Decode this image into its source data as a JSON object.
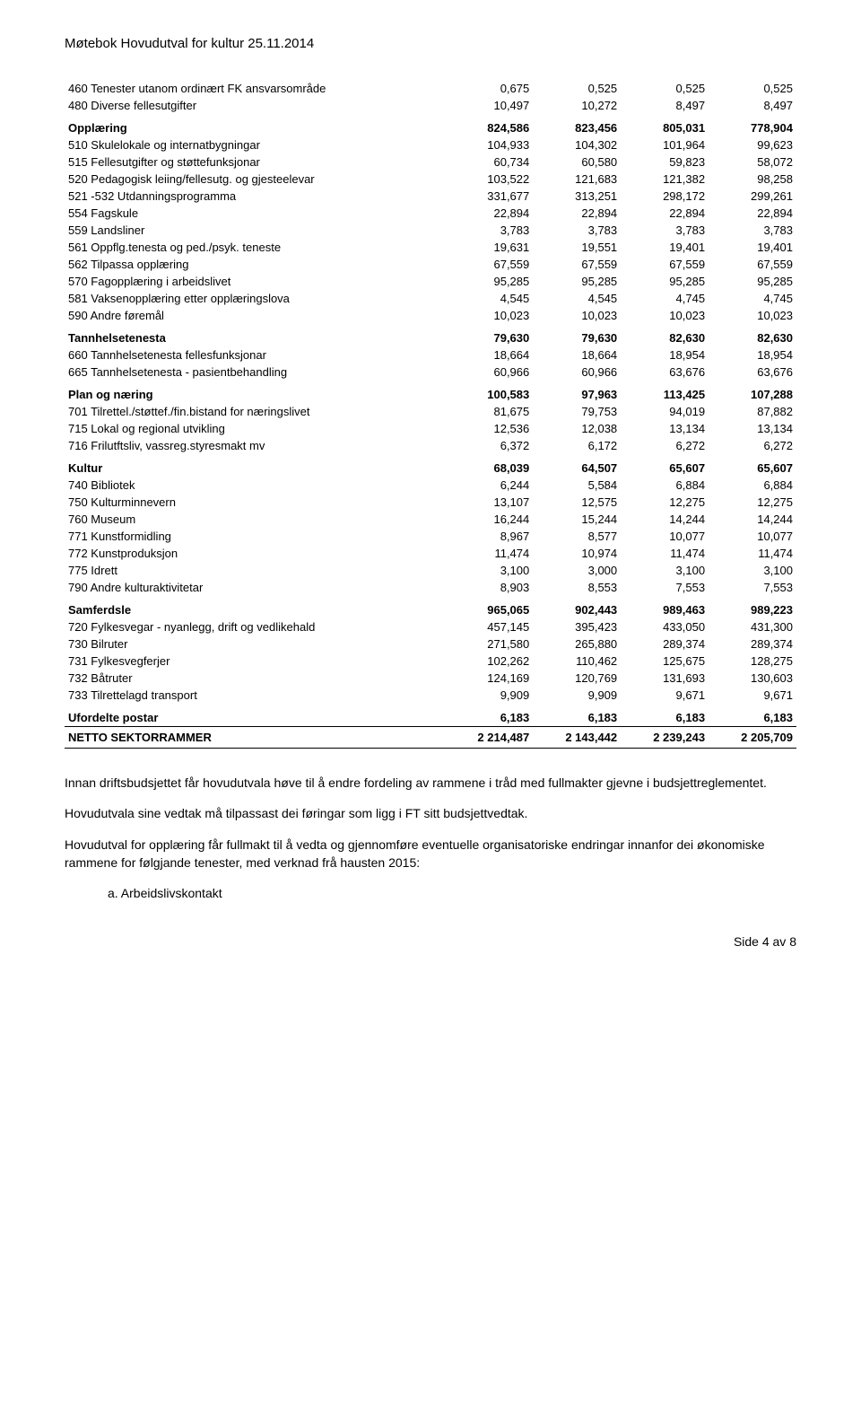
{
  "header": "Møtebok Hovudutval for kultur 25.11.2014",
  "rows": [
    {
      "type": "data",
      "label": "460 Tenester utanom ordinært FK ansvarsområde",
      "c": [
        "0,675",
        "0,525",
        "0,525",
        "0,525"
      ]
    },
    {
      "type": "data",
      "label": "480 Diverse fellesutgifter",
      "c": [
        "10,497",
        "10,272",
        "8,497",
        "8,497"
      ]
    },
    {
      "type": "section",
      "label": "Opplæring",
      "c": [
        "824,586",
        "823,456",
        "805,031",
        "778,904"
      ]
    },
    {
      "type": "data",
      "label": "510 Skulelokale og internatbygningar",
      "c": [
        "104,933",
        "104,302",
        "101,964",
        "99,623"
      ]
    },
    {
      "type": "data",
      "label": "515 Fellesutgifter og støttefunksjonar",
      "c": [
        "60,734",
        "60,580",
        "59,823",
        "58,072"
      ]
    },
    {
      "type": "data",
      "label": "520 Pedagogisk leiing/fellesutg. og gjesteelevar",
      "c": [
        "103,522",
        "121,683",
        "121,382",
        "98,258"
      ]
    },
    {
      "type": "data",
      "label": "521 -532 Utdanningsprogramma",
      "c": [
        "331,677",
        "313,251",
        "298,172",
        "299,261"
      ]
    },
    {
      "type": "data",
      "label": "554 Fagskule",
      "c": [
        "22,894",
        "22,894",
        "22,894",
        "22,894"
      ]
    },
    {
      "type": "data",
      "label": "559 Landsliner",
      "c": [
        "3,783",
        "3,783",
        "3,783",
        "3,783"
      ]
    },
    {
      "type": "data",
      "label": "561 Oppflg.tenesta og ped./psyk. teneste",
      "c": [
        "19,631",
        "19,551",
        "19,401",
        "19,401"
      ]
    },
    {
      "type": "data",
      "label": "562 Tilpassa opplæring",
      "c": [
        "67,559",
        "67,559",
        "67,559",
        "67,559"
      ]
    },
    {
      "type": "data",
      "label": "570 Fagopplæring i arbeidslivet",
      "c": [
        "95,285",
        "95,285",
        "95,285",
        "95,285"
      ]
    },
    {
      "type": "data",
      "label": "581 Vaksenopplæring etter opplæringslova",
      "c": [
        "4,545",
        "4,545",
        "4,745",
        "4,745"
      ]
    },
    {
      "type": "data",
      "label": "590 Andre føremål",
      "c": [
        "10,023",
        "10,023",
        "10,023",
        "10,023"
      ]
    },
    {
      "type": "section",
      "label": "Tannhelsetenesta",
      "c": [
        "79,630",
        "79,630",
        "82,630",
        "82,630"
      ]
    },
    {
      "type": "data",
      "label": "660 Tannhelsetenesta fellesfunksjonar",
      "c": [
        "18,664",
        "18,664",
        "18,954",
        "18,954"
      ]
    },
    {
      "type": "data",
      "label": "665 Tannhelsetenesta - pasientbehandling",
      "c": [
        "60,966",
        "60,966",
        "63,676",
        "63,676"
      ]
    },
    {
      "type": "section",
      "label": "Plan og næring",
      "c": [
        "100,583",
        "97,963",
        "113,425",
        "107,288"
      ]
    },
    {
      "type": "data",
      "label": "701 Tilrettel./støttef./fin.bistand for næringslivet",
      "c": [
        "81,675",
        "79,753",
        "94,019",
        "87,882"
      ]
    },
    {
      "type": "data",
      "label": "715 Lokal og regional utvikling",
      "c": [
        "12,536",
        "12,038",
        "13,134",
        "13,134"
      ]
    },
    {
      "type": "data",
      "label": "716 Frilutftsliv, vassreg.styresmakt mv",
      "c": [
        "6,372",
        "6,172",
        "6,272",
        "6,272"
      ]
    },
    {
      "type": "section",
      "label": "Kultur",
      "c": [
        "68,039",
        "64,507",
        "65,607",
        "65,607"
      ]
    },
    {
      "type": "data",
      "label": "740 Bibliotek",
      "c": [
        "6,244",
        "5,584",
        "6,884",
        "6,884"
      ]
    },
    {
      "type": "data",
      "label": "750 Kulturminnevern",
      "c": [
        "13,107",
        "12,575",
        "12,275",
        "12,275"
      ]
    },
    {
      "type": "data",
      "label": "760 Museum",
      "c": [
        "16,244",
        "15,244",
        "14,244",
        "14,244"
      ]
    },
    {
      "type": "data",
      "label": "771 Kunstformidling",
      "c": [
        "8,967",
        "8,577",
        "10,077",
        "10,077"
      ]
    },
    {
      "type": "data",
      "label": "772 Kunstproduksjon",
      "c": [
        "11,474",
        "10,974",
        "11,474",
        "11,474"
      ]
    },
    {
      "type": "data",
      "label": "775 Idrett",
      "c": [
        "3,100",
        "3,000",
        "3,100",
        "3,100"
      ]
    },
    {
      "type": "data",
      "label": "790 Andre kulturaktivitetar",
      "c": [
        "8,903",
        "8,553",
        "7,553",
        "7,553"
      ]
    },
    {
      "type": "section",
      "label": "Samferdsle",
      "c": [
        "965,065",
        "902,443",
        "989,463",
        "989,223"
      ]
    },
    {
      "type": "data",
      "label": "720 Fylkesvegar - nyanlegg, drift og vedlikehald",
      "c": [
        "457,145",
        "395,423",
        "433,050",
        "431,300"
      ]
    },
    {
      "type": "data",
      "label": "730 Bilruter",
      "c": [
        "271,580",
        "265,880",
        "289,374",
        "289,374"
      ]
    },
    {
      "type": "data",
      "label": "731 Fylkesvegferjer",
      "c": [
        "102,262",
        "110,462",
        "125,675",
        "128,275"
      ]
    },
    {
      "type": "data",
      "label": "732 Båtruter",
      "c": [
        "124,169",
        "120,769",
        "131,693",
        "130,603"
      ]
    },
    {
      "type": "data",
      "label": "733 Tilrettelagd transport",
      "c": [
        "9,909",
        "9,909",
        "9,671",
        "9,671"
      ]
    },
    {
      "type": "section",
      "label": "Ufordelte postar",
      "c": [
        "6,183",
        "6,183",
        "6,183",
        "6,183"
      ]
    },
    {
      "type": "total",
      "label": "NETTO SEKTORRAMMER",
      "c": [
        "2 214,487",
        "2 143,442",
        "2 239,243",
        "2 205,709"
      ]
    }
  ],
  "paragraphs": [
    "Innan driftsbudsjettet får hovudutvala høve til å endre fordeling av rammene i tråd med fullmakter gjevne i budsjettreglementet.",
    "Hovudutvala sine vedtak må tilpassast dei føringar som ligg i FT sitt budsjettvedtak.",
    "Hovudutval for opplæring får fullmakt til å vedta og gjennomføre eventuelle organisatoriske endringar innanfor dei økonomiske rammene for følgjande tenester, med verknad frå hausten 2015:"
  ],
  "list_item": "a. Arbeidslivskontakt",
  "footer": "Side 4 av 8"
}
